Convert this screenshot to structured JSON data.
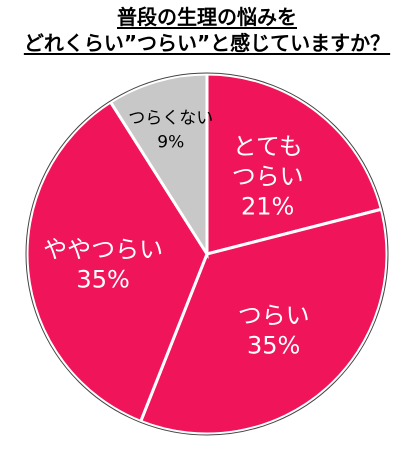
{
  "title": {
    "line1": "普段の生理の悩みを",
    "line2": "どれくらい”つらい”と感じていますか？"
  },
  "chart_data": {
    "type": "pie",
    "title": "普段の生理の悩みを どれくらい”つらい”と感じていますか？",
    "start_angle_deg": 0,
    "direction": "clockwise",
    "slices": [
      {
        "label_lines": [
          "とても",
          "つらい"
        ],
        "value": 21,
        "value_label": "21%",
        "color": "#f0145a",
        "text_color": "#ffffff"
      },
      {
        "label_lines": [
          "つらい"
        ],
        "value": 35,
        "value_label": "35%",
        "color": "#f0145a",
        "text_color": "#ffffff"
      },
      {
        "label_lines": [
          "ややつらい"
        ],
        "value": 35,
        "value_label": "35%",
        "color": "#f0145a",
        "text_color": "#ffffff"
      },
      {
        "label_lines": [
          "つらくない"
        ],
        "value": 9,
        "value_label": "9%",
        "color": "#c8c8c8",
        "text_color": "#000000"
      }
    ]
  }
}
